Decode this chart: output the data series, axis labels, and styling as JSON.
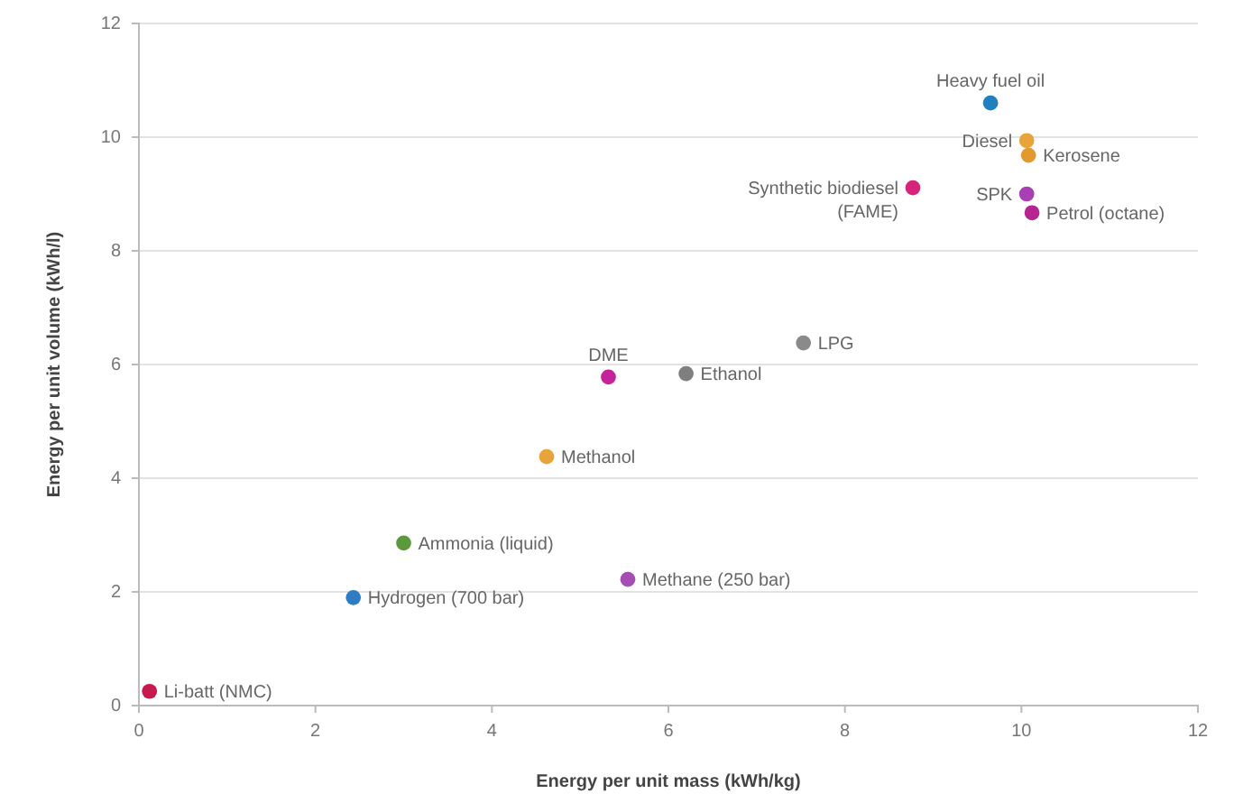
{
  "chart_data": {
    "type": "scatter",
    "xlabel": "Energy per unit mass (kWh/kg)",
    "ylabel": "Energy per unit volume (kWh/l)",
    "xlim": [
      0,
      12
    ],
    "ylim": [
      0,
      12
    ],
    "xticks": [
      0,
      2,
      4,
      6,
      8,
      10,
      12
    ],
    "yticks": [
      0,
      2,
      4,
      6,
      8,
      10,
      12
    ],
    "grid": "y",
    "marker": "circle",
    "series": [
      {
        "name": "Heavy fuel oil",
        "color": "#1f7fc0",
        "x": [
          9.65
        ],
        "values": [
          10.6
        ]
      },
      {
        "name": "Diesel",
        "color": "#e8a33a",
        "x": [
          10.06
        ],
        "values": [
          9.94
        ]
      },
      {
        "name": "Kerosene",
        "color": "#e39a2d",
        "x": [
          10.08
        ],
        "values": [
          9.68
        ]
      },
      {
        "name": "Synthetic biodiesel (FAME)",
        "color": "#d6247a",
        "x": [
          8.77
        ],
        "values": [
          9.11
        ]
      },
      {
        "name": "SPK",
        "color": "#a83fb5",
        "x": [
          10.06
        ],
        "values": [
          9.0
        ]
      },
      {
        "name": "Petrol (octane)",
        "color": "#b5248f",
        "x": [
          10.12
        ],
        "values": [
          8.67
        ]
      },
      {
        "name": "LPG",
        "color": "#8a8a8a",
        "x": [
          7.53
        ],
        "values": [
          6.38
        ]
      },
      {
        "name": "Ethanol",
        "color": "#7f7f7f",
        "x": [
          6.2
        ],
        "values": [
          5.84
        ]
      },
      {
        "name": "DME",
        "color": "#c4239a",
        "x": [
          5.32
        ],
        "values": [
          5.78
        ]
      },
      {
        "name": "Methanol",
        "color": "#e8a33a",
        "x": [
          4.62
        ],
        "values": [
          4.38
        ]
      },
      {
        "name": "Ammonia (liquid)",
        "color": "#5a9a3c",
        "x": [
          3.0
        ],
        "values": [
          2.86
        ]
      },
      {
        "name": "Hydrogen (700 bar)",
        "color": "#2e7cc4",
        "x": [
          2.43
        ],
        "values": [
          1.9
        ]
      },
      {
        "name": "Methane (250 bar)",
        "color": "#a44db3",
        "x": [
          5.54
        ],
        "values": [
          2.22
        ]
      },
      {
        "name": "Li-batt (NMC)",
        "color": "#c8194f",
        "x": [
          0.12
        ],
        "values": [
          0.25
        ]
      }
    ]
  }
}
